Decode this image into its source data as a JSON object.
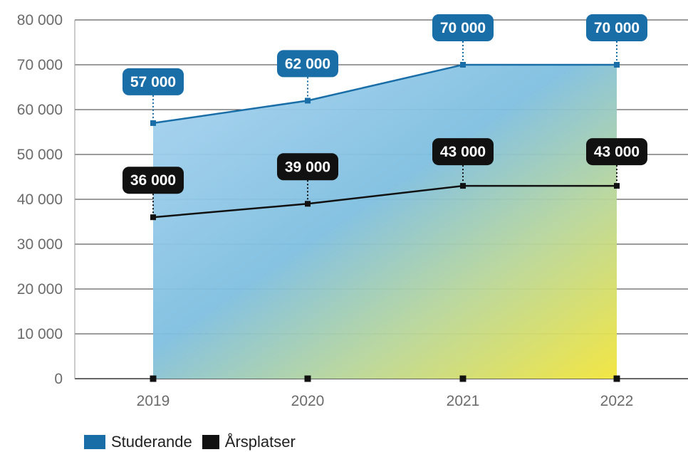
{
  "chart_data": {
    "type": "area",
    "title": "",
    "xlabel": "",
    "ylabel": "",
    "categories": [
      "2019",
      "2020",
      "2021",
      "2022"
    ],
    "ylim": [
      0,
      80000
    ],
    "yticks": [
      0,
      10000,
      20000,
      30000,
      40000,
      50000,
      60000,
      70000,
      80000
    ],
    "ytick_labels": [
      "0",
      "10 000",
      "20 000",
      "30 000",
      "40 000",
      "50 000",
      "60 000",
      "70 000",
      "80 000"
    ],
    "grid": true,
    "legend_position": "bottom-left",
    "series": [
      {
        "name": "Studerande",
        "values": [
          57000,
          62000,
          70000,
          70000
        ],
        "labels": [
          "57 000",
          "62 000",
          "70 000",
          "70 000"
        ],
        "color": "#1a6ea8"
      },
      {
        "name": "Årsplatser",
        "values": [
          36000,
          39000,
          43000,
          43000
        ],
        "labels": [
          "36 000",
          "39 000",
          "43 000",
          "43 000"
        ],
        "color": "#111111"
      }
    ],
    "fill_gradient": [
      "#a9d4f0",
      "#f0e43a"
    ]
  }
}
